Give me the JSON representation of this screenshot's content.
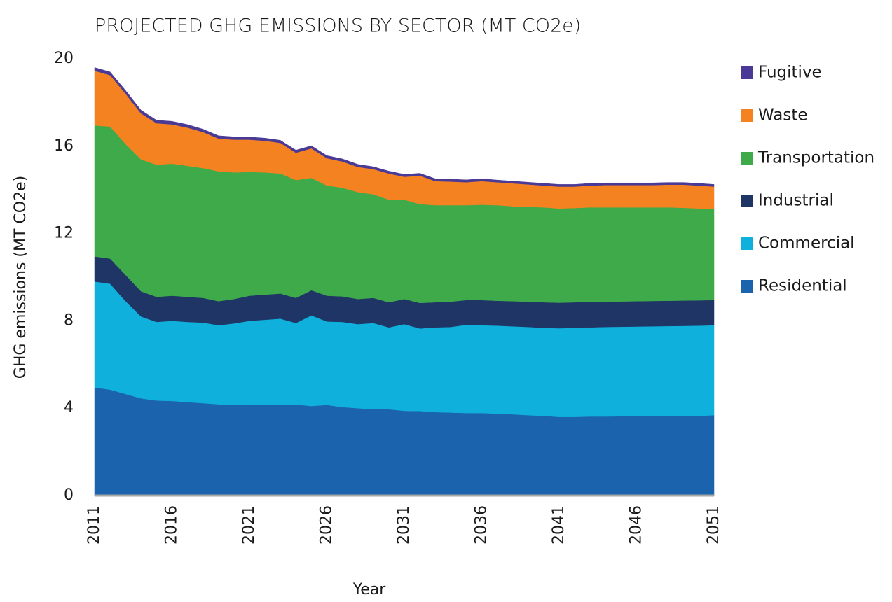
{
  "chart_data": {
    "type": "stacked_area",
    "title": "PROJECTED GHG EMISSIONS BY SECTOR (MT CO2e)",
    "x_label": "Year",
    "y_label": "GHG emissions (MT CO2e)",
    "x": [
      2011,
      2012,
      2013,
      2014,
      2015,
      2016,
      2017,
      2018,
      2019,
      2020,
      2021,
      2022,
      2023,
      2024,
      2025,
      2026,
      2027,
      2028,
      2029,
      2030,
      2031,
      2032,
      2033,
      2034,
      2035,
      2036,
      2037,
      2038,
      2039,
      2040,
      2041,
      2042,
      2043,
      2044,
      2045,
      2046,
      2047,
      2048,
      2049,
      2050,
      2051
    ],
    "xlim": [
      2011,
      2051
    ],
    "xticks": [
      2011,
      2016,
      2021,
      2026,
      2031,
      2036,
      2041,
      2046,
      2051
    ],
    "ylim": [
      0,
      20
    ],
    "yticks": [
      0,
      4,
      8,
      12,
      16,
      20
    ],
    "grid": false,
    "legend": "right",
    "series": [
      {
        "name": "Residential",
        "color": "#1b64ad",
        "values": [
          4.95,
          4.85,
          4.65,
          4.45,
          4.35,
          4.33,
          4.28,
          4.23,
          4.18,
          4.15,
          4.17,
          4.17,
          4.17,
          4.17,
          4.1,
          4.15,
          4.05,
          4.0,
          3.95,
          3.95,
          3.88,
          3.87,
          3.82,
          3.8,
          3.78,
          3.78,
          3.75,
          3.72,
          3.68,
          3.65,
          3.6,
          3.6,
          3.62,
          3.62,
          3.63,
          3.63,
          3.63,
          3.64,
          3.65,
          3.65,
          3.68
        ]
      },
      {
        "name": "Commercial",
        "color": "#10b0dc",
        "values": [
          4.85,
          4.85,
          4.25,
          3.75,
          3.6,
          3.67,
          3.67,
          3.69,
          3.62,
          3.73,
          3.83,
          3.88,
          3.93,
          3.73,
          4.15,
          3.82,
          3.9,
          3.85,
          3.95,
          3.75,
          3.97,
          3.78,
          3.88,
          3.92,
          4.04,
          4.02,
          4.03,
          4.03,
          4.04,
          4.03,
          4.06,
          4.08,
          4.08,
          4.1,
          4.1,
          4.11,
          4.12,
          4.12,
          4.12,
          4.13,
          4.12
        ]
      },
      {
        "name": "Industrial",
        "color": "#1f3566",
        "values": [
          1.15,
          1.15,
          1.2,
          1.15,
          1.15,
          1.15,
          1.15,
          1.13,
          1.1,
          1.12,
          1.15,
          1.15,
          1.15,
          1.15,
          1.15,
          1.18,
          1.17,
          1.15,
          1.15,
          1.15,
          1.15,
          1.17,
          1.15,
          1.16,
          1.13,
          1.15,
          1.14,
          1.15,
          1.16,
          1.17,
          1.17,
          1.17,
          1.17,
          1.16,
          1.16,
          1.16,
          1.16,
          1.16,
          1.16,
          1.16,
          1.15
        ]
      },
      {
        "name": "Transportation",
        "color": "#3eaa49",
        "values": [
          6.0,
          6.05,
          6.0,
          6.05,
          6.05,
          6.05,
          6.0,
          5.95,
          5.95,
          5.8,
          5.67,
          5.6,
          5.5,
          5.4,
          5.15,
          5.05,
          4.98,
          4.9,
          4.75,
          4.7,
          4.55,
          4.53,
          4.45,
          4.42,
          4.35,
          4.37,
          4.38,
          4.35,
          4.34,
          4.35,
          4.32,
          4.32,
          4.33,
          4.32,
          4.31,
          4.3,
          4.29,
          4.28,
          4.25,
          4.21,
          4.2
        ]
      },
      {
        "name": "Waste",
        "color": "#f58220",
        "values": [
          2.5,
          2.35,
          2.3,
          2.1,
          1.9,
          1.8,
          1.75,
          1.65,
          1.5,
          1.5,
          1.48,
          1.45,
          1.4,
          1.25,
          1.35,
          1.25,
          1.2,
          1.15,
          1.15,
          1.2,
          1.05,
          1.3,
          1.1,
          1.08,
          1.05,
          1.08,
          1.05,
          1.05,
          1.03,
          1.0,
          1.0,
          0.98,
          1.0,
          1.02,
          1.02,
          1.02,
          1.02,
          1.04,
          1.06,
          1.05,
          1.0
        ]
      },
      {
        "name": "Fugitive",
        "color": "#4a3a96",
        "values": [
          0.15,
          0.15,
          0.15,
          0.15,
          0.14,
          0.14,
          0.14,
          0.13,
          0.13,
          0.13,
          0.12,
          0.12,
          0.12,
          0.12,
          0.12,
          0.12,
          0.12,
          0.12,
          0.11,
          0.11,
          0.11,
          0.11,
          0.11,
          0.11,
          0.11,
          0.11,
          0.1,
          0.1,
          0.1,
          0.1,
          0.1,
          0.1,
          0.1,
          0.1,
          0.1,
          0.1,
          0.1,
          0.1,
          0.1,
          0.1,
          0.1
        ]
      }
    ]
  }
}
